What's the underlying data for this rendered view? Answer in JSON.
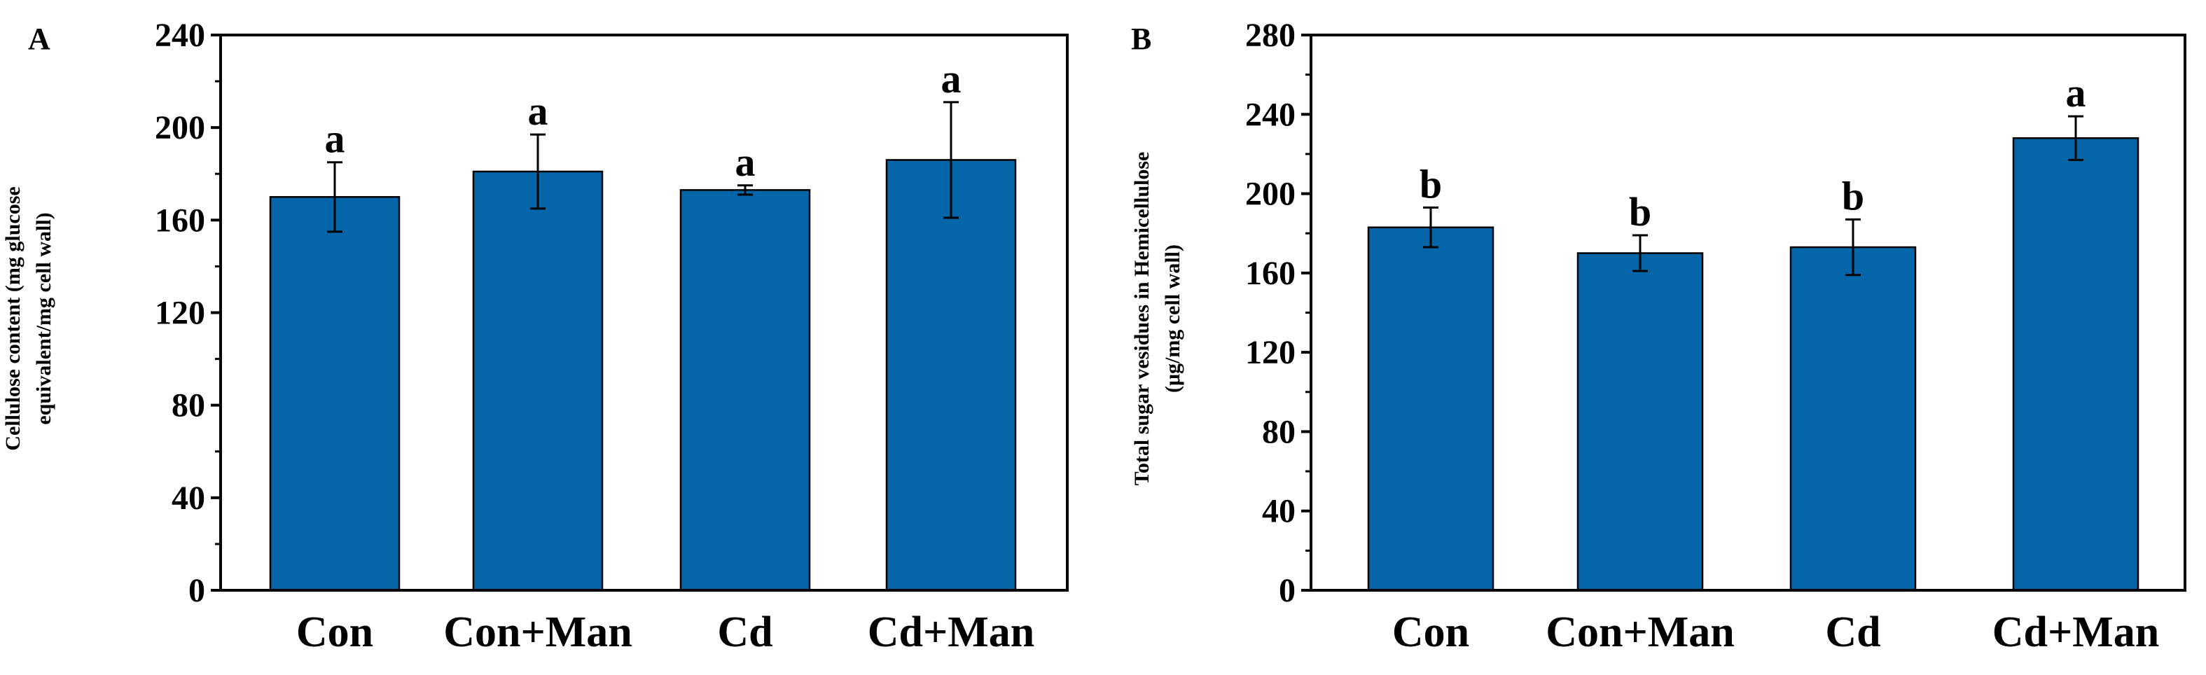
{
  "bar_color": "#0465a9",
  "chart_data": [
    {
      "type": "bar",
      "panel": "A",
      "categories": [
        "Con",
        "Con+Man",
        "Cd",
        "Cd+Man"
      ],
      "values": [
        170,
        181,
        173,
        186
      ],
      "errors": [
        15,
        16,
        2,
        25
      ],
      "significance": [
        "a",
        "a",
        "a",
        "a"
      ],
      "ylabel_lines": [
        "Cellulose content (mg glucose",
        "equivalent/mg cell wall)"
      ],
      "ylim": [
        0,
        240
      ],
      "yticks": [
        "0",
        "40",
        "80",
        "120",
        "160",
        "200",
        "240"
      ]
    },
    {
      "type": "bar",
      "panel": "B",
      "categories": [
        "Con",
        "Con+Man",
        "Cd",
        "Cd+Man"
      ],
      "values": [
        183,
        170,
        173,
        228
      ],
      "errors": [
        10,
        9,
        14,
        11
      ],
      "significance": [
        "b",
        "b",
        "b",
        "a"
      ],
      "ylabel_lines": [
        "Total sugar vesidues in Hemicellulose",
        "(μg/mg cell wall)"
      ],
      "ylim": [
        0,
        280
      ],
      "yticks": [
        "0",
        "40",
        "80",
        "120",
        "160",
        "200",
        "240",
        "280"
      ]
    }
  ]
}
